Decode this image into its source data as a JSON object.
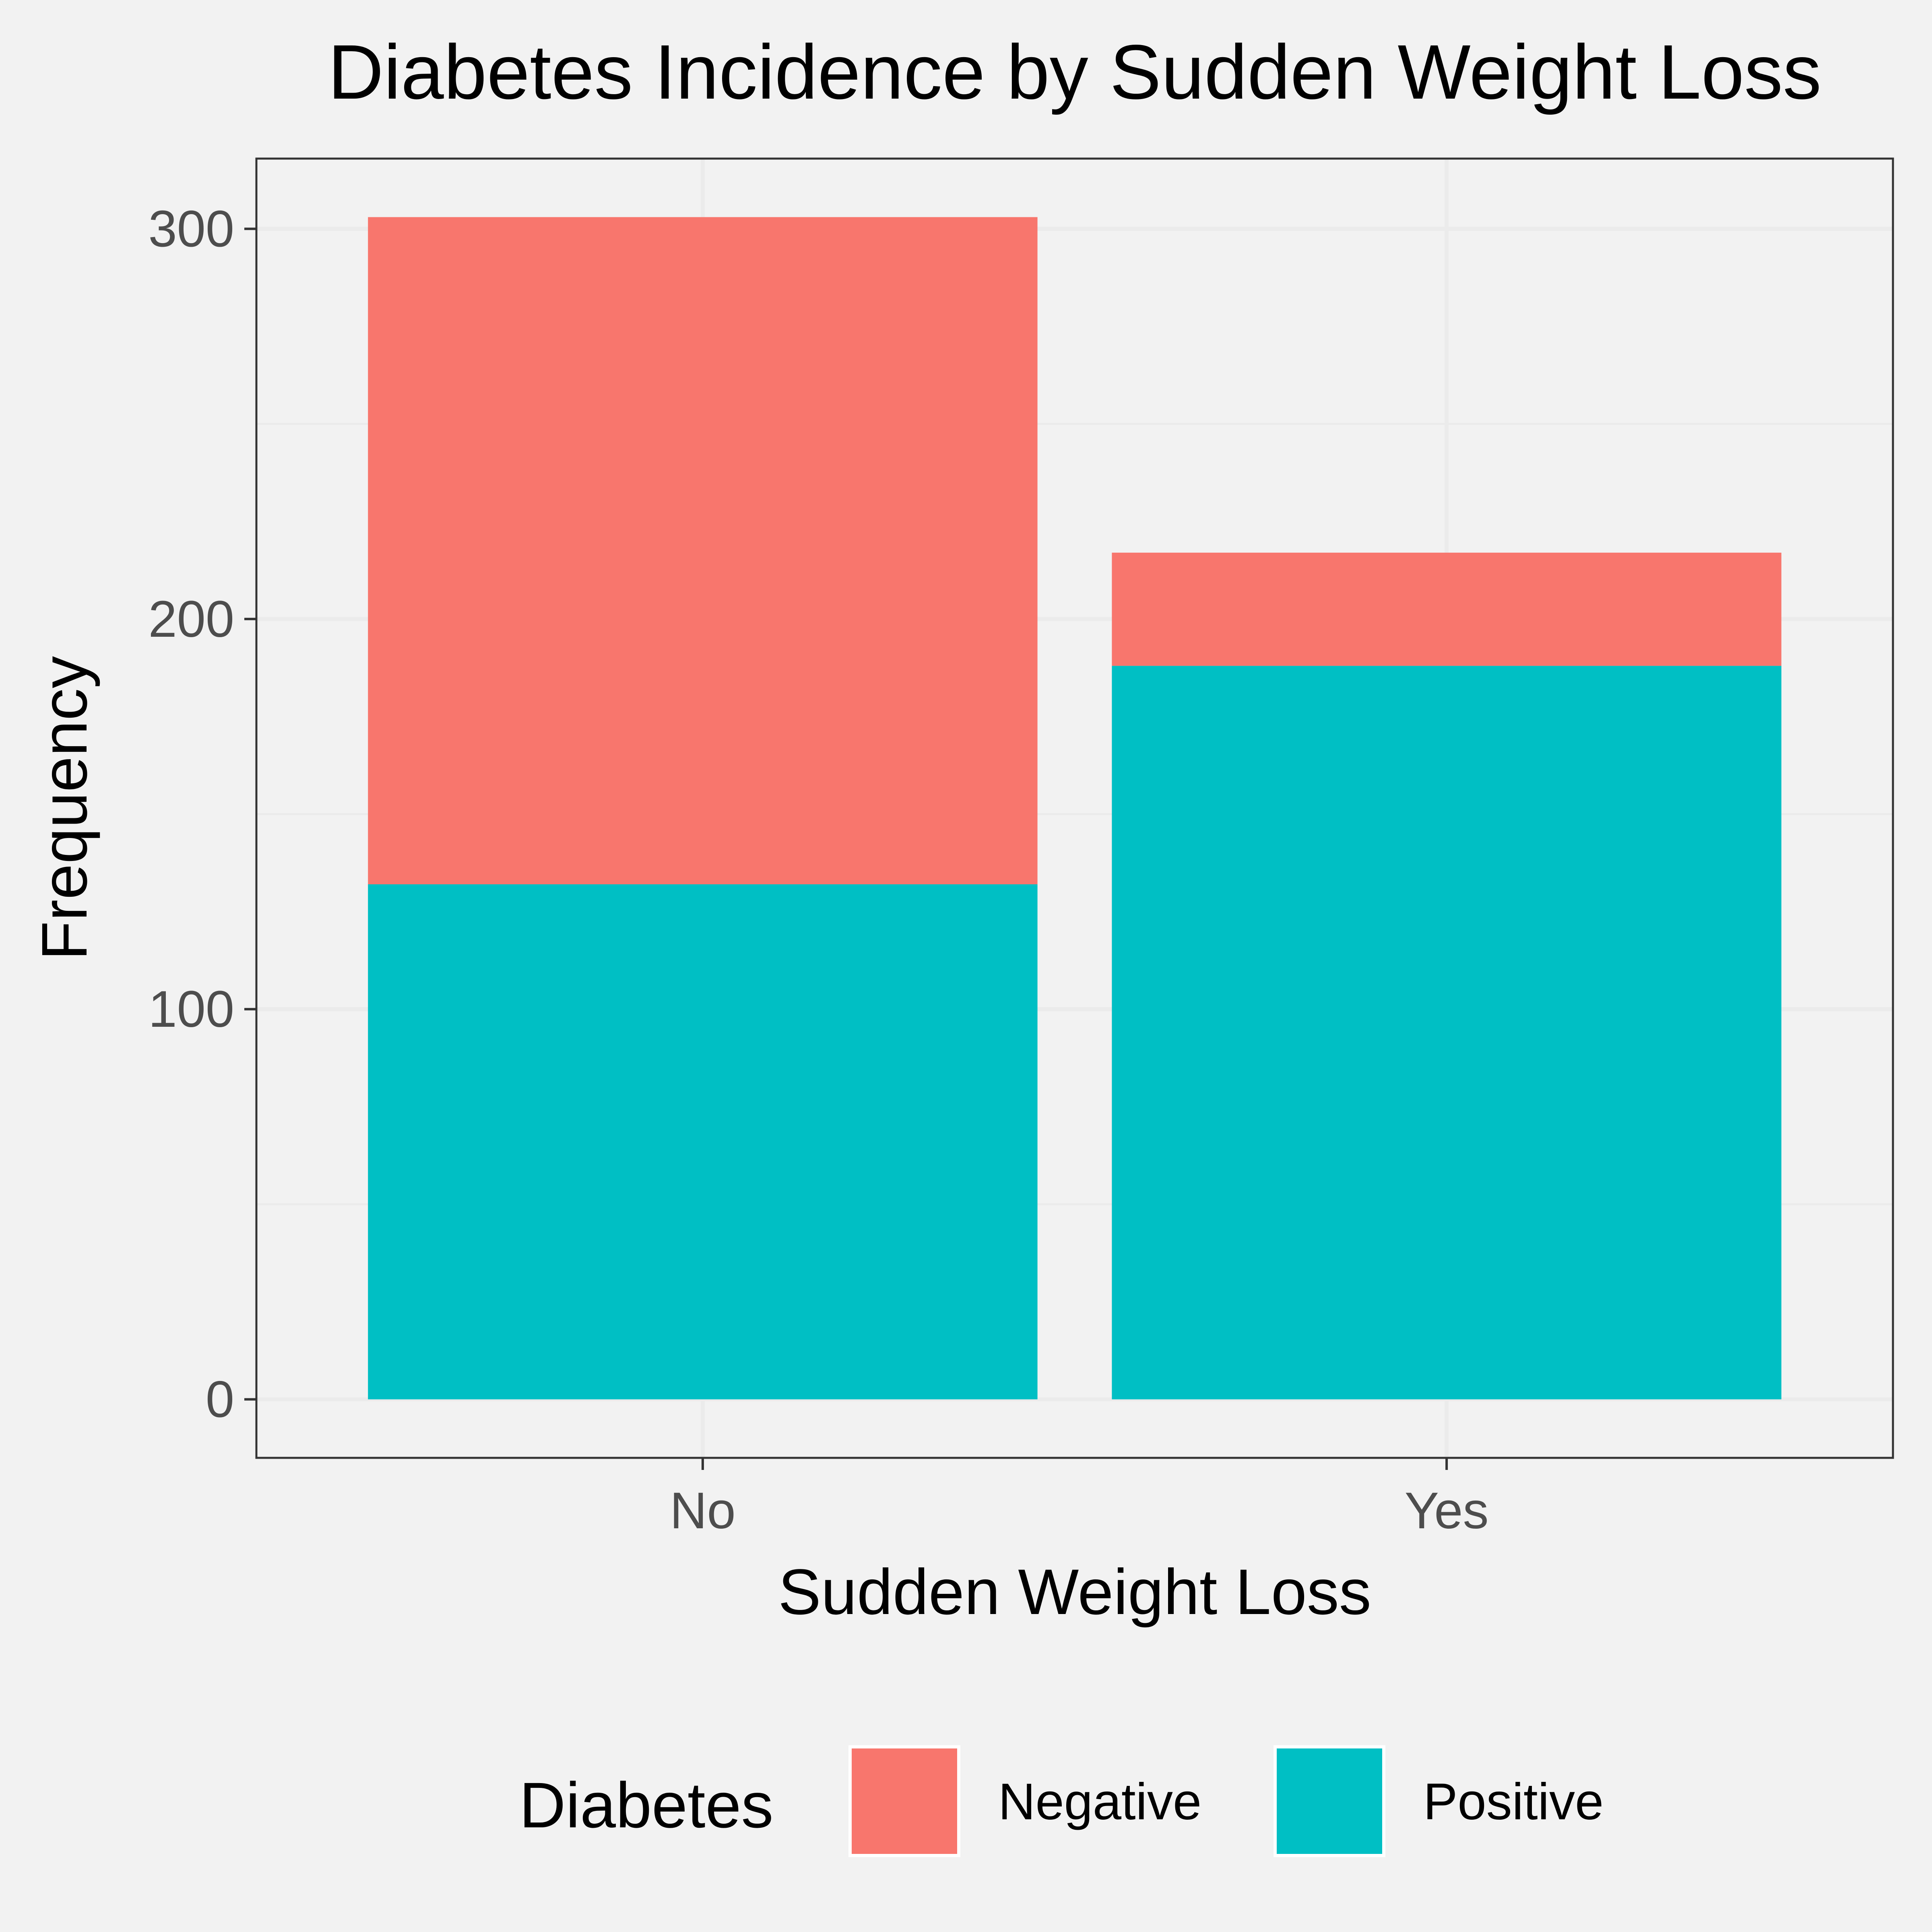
{
  "chart_data": {
    "type": "bar",
    "stacked": true,
    "title": "Diabetes Incidence by Sudden Weight Loss",
    "xlabel": "Sudden Weight Loss",
    "ylabel": "Frequency",
    "categories": [
      "No",
      "Yes"
    ],
    "series": [
      {
        "name": "Positive",
        "color": "#00bfc4",
        "values": [
          132,
          188
        ]
      },
      {
        "name": "Negative",
        "color": "#f8766d",
        "values": [
          171,
          29
        ]
      }
    ],
    "ylim": [
      -15,
      318
    ],
    "yticks": [
      0,
      100,
      200,
      300
    ],
    "grid": true,
    "legend": {
      "title": "Diabetes",
      "position": "bottom",
      "entries": [
        "Negative",
        "Positive"
      ]
    },
    "colors": {
      "background": "#f2f2f2",
      "panel_border": "#333333",
      "grid": "#ebebeb"
    }
  }
}
